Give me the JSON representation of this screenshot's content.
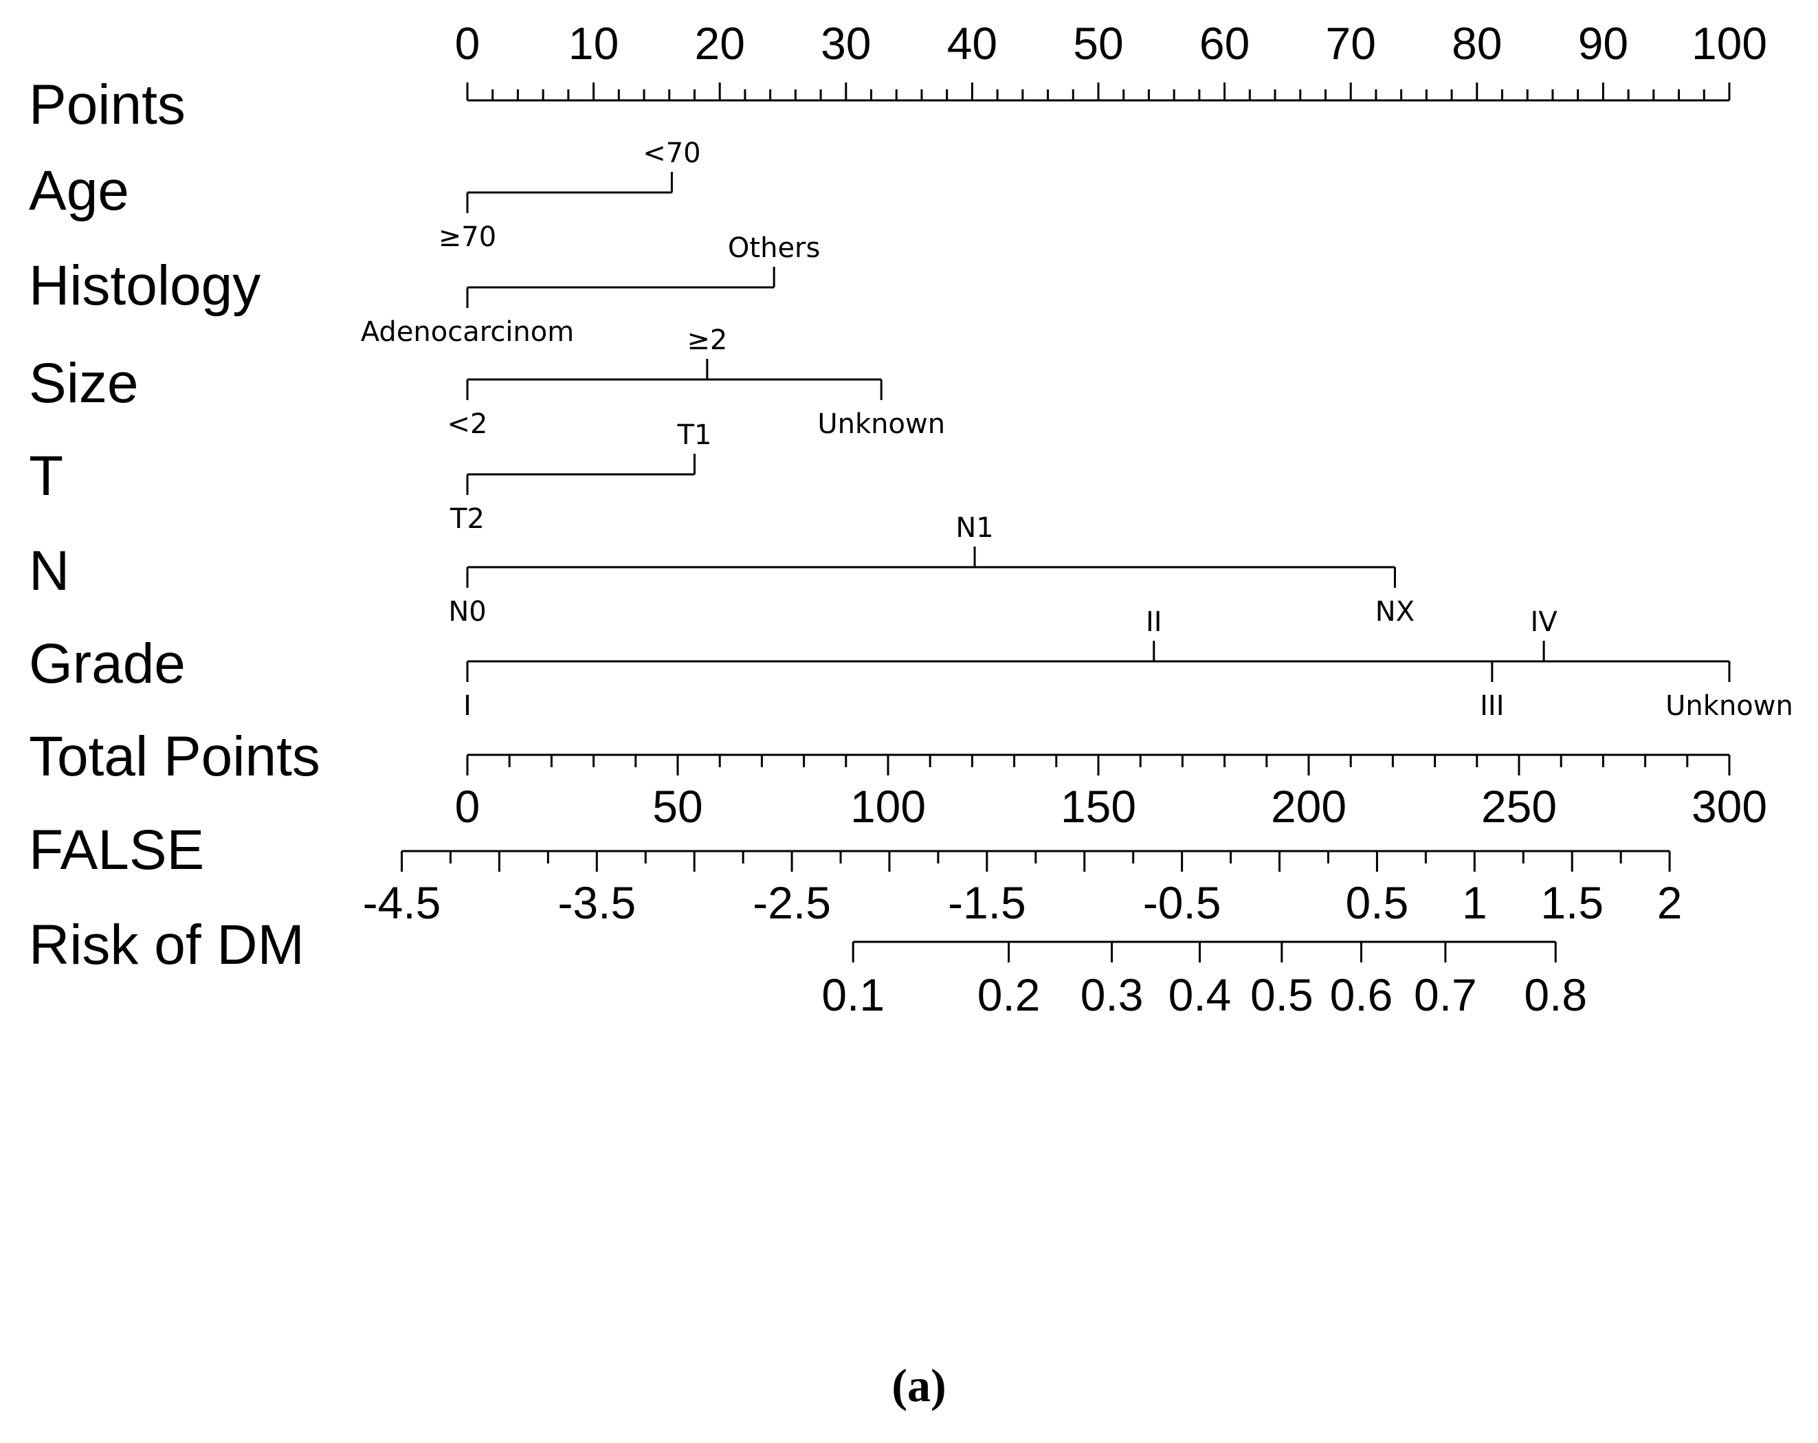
{
  "chart_data": {
    "type": "nomogram",
    "caption": "(a)",
    "rows": [
      {
        "label": "Points",
        "kind": "scale",
        "ticks": [
          0,
          10,
          20,
          30,
          40,
          50,
          60,
          70,
          80,
          90,
          100
        ],
        "tick_labels": [
          "0",
          "10",
          "20",
          "30",
          "40",
          "50",
          "60",
          "70",
          "80",
          "90",
          "100"
        ],
        "minor_step": 2
      },
      {
        "label": "Age",
        "kind": "variable",
        "levels": [
          {
            "name": "≥70",
            "points": 0,
            "side": "below"
          },
          {
            "name": "<70",
            "points": 16.2,
            "side": "above"
          }
        ]
      },
      {
        "label": "Histology",
        "kind": "variable",
        "levels": [
          {
            "name": "Adenocarcinom",
            "points": 0,
            "side": "below"
          },
          {
            "name": "Others",
            "points": 24.3,
            "side": "above"
          }
        ]
      },
      {
        "label": "Size",
        "kind": "variable",
        "levels": [
          {
            "name": "<2",
            "points": 0,
            "side": "below"
          },
          {
            "name": "≥2",
            "points": 19,
            "side": "above"
          },
          {
            "name": "Unknown",
            "points": 32.8,
            "side": "below"
          }
        ]
      },
      {
        "label": "T",
        "kind": "variable",
        "levels": [
          {
            "name": "T2",
            "points": 0,
            "side": "below"
          },
          {
            "name": "T1",
            "points": 18,
            "side": "above"
          }
        ]
      },
      {
        "label": "N",
        "kind": "variable",
        "levels": [
          {
            "name": "N0",
            "points": 0,
            "side": "below"
          },
          {
            "name": "N1",
            "points": 40.2,
            "side": "above"
          },
          {
            "name": "NX",
            "points": 73.5,
            "side": "below"
          }
        ]
      },
      {
        "label": "Grade",
        "kind": "variable",
        "levels": [
          {
            "name": "I",
            "points": 0,
            "side": "below"
          },
          {
            "name": "II",
            "points": 54.4,
            "side": "above"
          },
          {
            "name": "III",
            "points": 81.2,
            "side": "below"
          },
          {
            "name": "IV",
            "points": 85.3,
            "side": "above"
          },
          {
            "name": "Unknown",
            "points": 100,
            "side": "below"
          }
        ]
      },
      {
        "label": "Total Points",
        "kind": "scale",
        "ticks": [
          0,
          50,
          100,
          150,
          200,
          250,
          300
        ],
        "tick_labels": [
          "0",
          "50",
          "100",
          "150",
          "200",
          "250",
          "300"
        ],
        "minor_step": 10,
        "range": [
          0,
          300
        ]
      },
      {
        "label": "FALSE",
        "kind": "scale",
        "ticks": [
          -4.5,
          -3.5,
          -2.5,
          -1.5,
          -0.5,
          0.5,
          1,
          1.5,
          2
        ],
        "tick_labels": [
          "-4.5",
          "-3.5",
          "-2.5",
          "-1.5",
          "-0.5",
          "0.5",
          "1",
          "1.5",
          "2"
        ],
        "minor_step": 0.5,
        "range": [
          -4.5,
          2
        ],
        "total_points_at_range": [
          -15.6,
          285.8
        ]
      },
      {
        "label": "Risk of DM",
        "kind": "probability",
        "ticks": [
          0.1,
          0.2,
          0.3,
          0.4,
          0.5,
          0.6,
          0.7,
          0.8
        ],
        "tick_labels": [
          "0.1",
          "0.2",
          "0.3",
          "0.4",
          "0.5",
          "0.6",
          "0.7",
          "0.8"
        ],
        "total_points_at_ticks": [
          91.7,
          128.7,
          153.2,
          174.1,
          193.6,
          212.5,
          232.5,
          258.7
        ]
      }
    ]
  }
}
